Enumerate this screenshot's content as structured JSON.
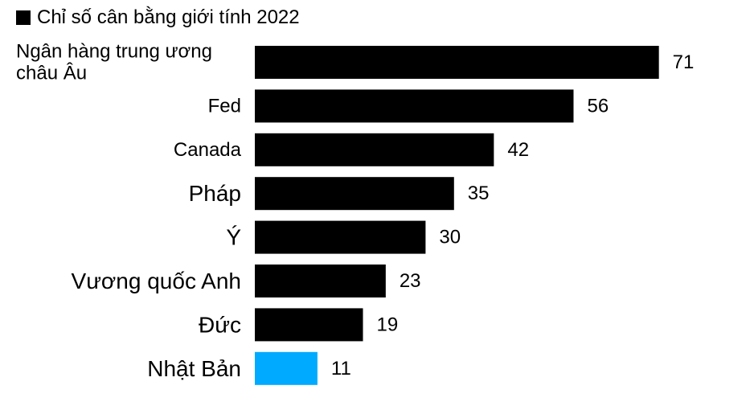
{
  "chart_data": {
    "type": "bar",
    "orientation": "horizontal",
    "legend": {
      "label": "Chỉ số cân bằng giới tính 2022",
      "color": "#000000",
      "placement": "top-left"
    },
    "categories": [
      [
        "Ngân hàng trung ương",
        "châu Âu"
      ],
      [
        "Fed"
      ],
      [
        "Canada"
      ],
      [
        "Pháp"
      ],
      [
        "Ý"
      ],
      [
        "Vương quốc Anh"
      ],
      [
        "Đức"
      ],
      [
        "Nhật Bản"
      ]
    ],
    "values": [
      71,
      56,
      42,
      35,
      30,
      23,
      19,
      11
    ],
    "colors": [
      "#000000",
      "#000000",
      "#000000",
      "#000000",
      "#000000",
      "#000000",
      "#000000",
      "#00aaff"
    ],
    "value_labels": true,
    "xlim": [
      0,
      71
    ],
    "grid": false,
    "axes_visible": false
  }
}
